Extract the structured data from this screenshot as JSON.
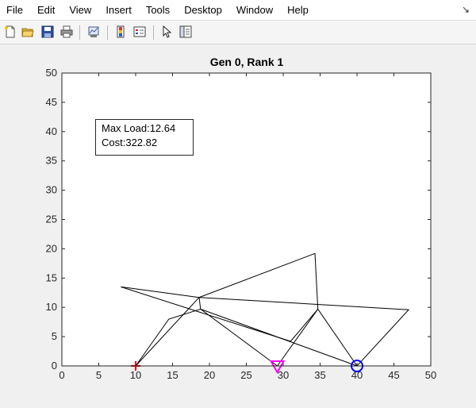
{
  "menu": {
    "items": [
      "File",
      "Edit",
      "View",
      "Insert",
      "Tools",
      "Desktop",
      "Window",
      "Help"
    ],
    "overflow_icon": "dock-arrow-icon"
  },
  "toolbar": {
    "buttons": [
      "new-figure-icon",
      "open-file-icon",
      "save-icon",
      "print-icon",
      "link-plot-icon",
      "colorbar-icon",
      "legend-icon",
      "pointer-icon",
      "property-editor-icon"
    ]
  },
  "plot": {
    "title": "Gen 0, Rank 1",
    "annotation": {
      "line1": "Max Load:12.64",
      "line2": "Cost:322.82"
    }
  },
  "chart_data": {
    "type": "line",
    "title": "Gen 0, Rank 1",
    "xlim": [
      0,
      50
    ],
    "ylim": [
      0,
      50
    ],
    "xticks": [
      0,
      5,
      10,
      15,
      20,
      25,
      30,
      35,
      40,
      45,
      50
    ],
    "yticks": [
      0,
      5,
      10,
      15,
      20,
      25,
      30,
      35,
      40,
      45,
      50
    ],
    "nodes": [
      [
        10,
        0
      ],
      [
        14.5,
        8
      ],
      [
        18.8,
        9.7
      ],
      [
        18.6,
        11.7
      ],
      [
        8,
        13.5
      ],
      [
        34.3,
        19.2
      ],
      [
        34.7,
        9.7
      ],
      [
        47,
        9.6
      ],
      [
        29.2,
        0
      ],
      [
        40,
        0
      ],
      [
        31,
        4.2
      ]
    ],
    "members": [
      [
        [
          10,
          0
        ],
        [
          14.5,
          8
        ],
        [
          18.8,
          9.7
        ],
        [
          29.2,
          0
        ]
      ],
      [
        [
          10,
          0
        ],
        [
          18.6,
          11.7
        ],
        [
          34.3,
          19.2
        ],
        [
          34.7,
          9.7
        ],
        [
          40,
          0
        ],
        [
          47,
          9.6
        ],
        [
          18.6,
          11.7
        ],
        [
          18.8,
          9.7
        ],
        [
          40,
          0
        ]
      ],
      [
        [
          8,
          13.5
        ],
        [
          18.6,
          11.7
        ]
      ],
      [
        [
          8,
          13.5
        ],
        [
          31,
          4.2
        ],
        [
          34.7,
          9.7
        ],
        [
          29.2,
          0
        ]
      ],
      [
        [
          10,
          0
        ],
        [
          29.2,
          0
        ]
      ]
    ],
    "markers": [
      {
        "x": 10,
        "y": 0,
        "symbol": "+",
        "color": "#ff0000"
      },
      {
        "x": 29.2,
        "y": 0,
        "symbol": "triangle-down",
        "color": "#ff00ff"
      },
      {
        "x": 40,
        "y": 0,
        "symbol": "circle",
        "color": "#0000ff"
      }
    ],
    "line_color": "#000000"
  }
}
